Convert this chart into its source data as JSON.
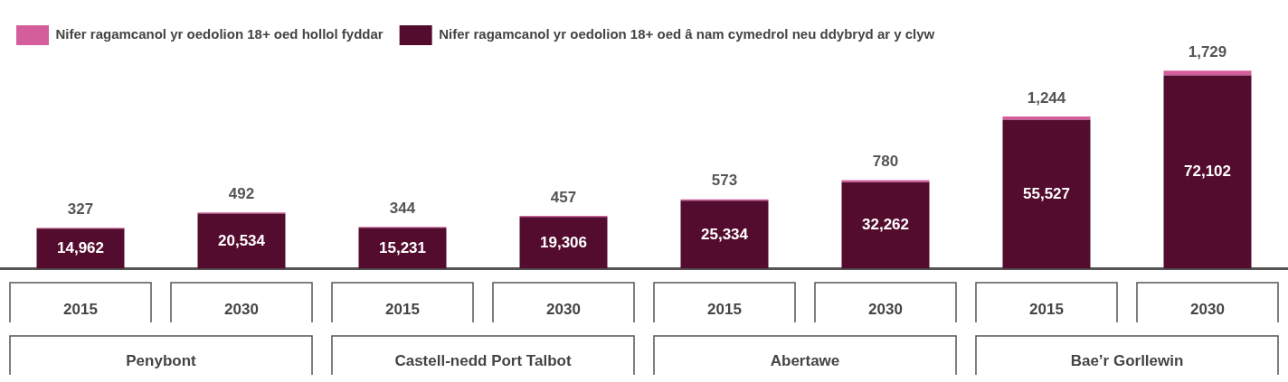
{
  "chart_data": {
    "type": "bar",
    "stacked": true,
    "categories": [
      "2015",
      "2030",
      "2015",
      "2030",
      "2015",
      "2030",
      "2015",
      "2030"
    ],
    "series": [
      {
        "name": "Nifer ragamcanol yr oedolion 18+ oed â nam cymedrol neu ddybryd ar y clyw",
        "color": "#540c2e",
        "values": [
          14962,
          20534,
          15231,
          19306,
          25334,
          32262,
          55527,
          72102
        ],
        "value_labels": [
          "14,962",
          "20,534",
          "15,231",
          "19,306",
          "25,334",
          "32,262",
          "55,527",
          "72,102"
        ]
      },
      {
        "name": "Nifer ragamcanol yr oedolion 18+ oed hollol fyddar",
        "color": "#d45d9c",
        "values": [
          327,
          492,
          344,
          457,
          573,
          780,
          1244,
          1729
        ],
        "value_labels": [
          "327",
          "492",
          "344",
          "457",
          "573",
          "780",
          "1,244",
          "1,729"
        ]
      }
    ],
    "legend": "top left",
    "grid": false,
    "annotations": [
      "Penybont",
      "Castell-nedd Port Talbot",
      "Abertawe",
      "Bae’r Gorllewin"
    ]
  }
}
